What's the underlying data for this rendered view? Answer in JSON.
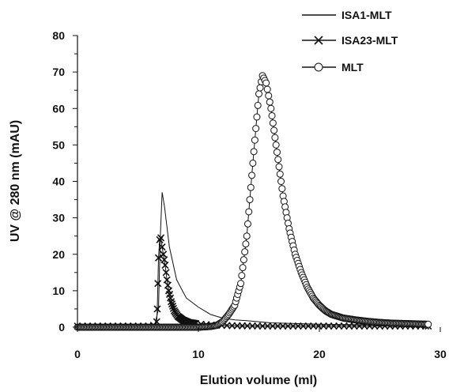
{
  "chart_data": {
    "type": "line",
    "xlabel": "Elution volume (ml)",
    "ylabel": "UV @ 280 nm (mAU)",
    "xlim": [
      0,
      30
    ],
    "ylim": [
      0,
      80
    ],
    "x_ticks": [
      0,
      10,
      20,
      30
    ],
    "y_ticks": [
      0,
      10,
      20,
      30,
      40,
      50,
      60,
      70,
      80
    ],
    "grid": false,
    "legend_position": "top-right",
    "series": [
      {
        "name": "ISA1-MLT",
        "marker": "none",
        "color": "#111111",
        "points": [
          [
            0,
            0.5
          ],
          [
            5,
            0.5
          ],
          [
            6.4,
            0.8
          ],
          [
            6.7,
            5
          ],
          [
            6.85,
            25
          ],
          [
            7.0,
            37
          ],
          [
            7.2,
            33
          ],
          [
            7.6,
            22
          ],
          [
            8.2,
            13
          ],
          [
            9,
            8
          ],
          [
            10,
            5.5
          ],
          [
            11,
            3.5
          ],
          [
            12,
            2.5
          ],
          [
            13,
            2
          ],
          [
            14,
            1.8
          ],
          [
            16,
            1.2
          ],
          [
            20,
            0.8
          ],
          [
            25,
            0.6
          ],
          [
            29,
            0.5
          ]
        ]
      },
      {
        "name": "ISA23-MLT",
        "marker": "x",
        "color": "#111111",
        "points": [
          [
            0,
            0.3
          ],
          [
            3,
            0.3
          ],
          [
            6,
            0.3
          ],
          [
            6.45,
            0.6
          ],
          [
            6.55,
            1.5
          ],
          [
            6.6,
            5
          ],
          [
            6.65,
            12
          ],
          [
            6.7,
            19
          ],
          [
            6.8,
            24
          ],
          [
            6.9,
            24.5
          ],
          [
            7.0,
            22
          ],
          [
            7.1,
            20
          ],
          [
            7.25,
            17
          ],
          [
            7.4,
            13
          ],
          [
            7.55,
            10
          ],
          [
            7.75,
            7
          ],
          [
            8.0,
            4.5
          ],
          [
            8.3,
            3
          ],
          [
            8.7,
            2
          ],
          [
            9.2,
            1.3
          ],
          [
            10,
            0.9
          ],
          [
            11,
            0.6
          ],
          [
            12,
            0.5
          ],
          [
            13,
            0.4
          ],
          [
            16,
            0.3
          ],
          [
            20,
            0.3
          ],
          [
            25,
            0.3
          ],
          [
            29,
            0.3
          ]
        ]
      },
      {
        "name": "MLT",
        "marker": "circle",
        "color": "#111111",
        "points": [
          [
            0,
            0
          ],
          [
            2,
            0
          ],
          [
            4,
            0
          ],
          [
            6,
            0
          ],
          [
            8,
            0
          ],
          [
            10,
            0
          ],
          [
            11,
            0.2
          ],
          [
            11.5,
            0.5
          ],
          [
            12,
            1.5
          ],
          [
            12.5,
            3.5
          ],
          [
            13,
            6
          ],
          [
            13.5,
            12
          ],
          [
            14,
            25
          ],
          [
            14.5,
            45
          ],
          [
            15,
            64
          ],
          [
            15.3,
            69
          ],
          [
            15.6,
            67
          ],
          [
            16,
            60
          ],
          [
            16.5,
            48
          ],
          [
            17,
            36
          ],
          [
            17.5,
            27
          ],
          [
            18,
            20
          ],
          [
            18.5,
            15
          ],
          [
            19,
            11
          ],
          [
            19.5,
            8
          ],
          [
            20,
            6
          ],
          [
            20.5,
            4.5
          ],
          [
            21,
            3.5
          ],
          [
            21.5,
            3
          ],
          [
            22,
            2.5
          ],
          [
            23,
            2
          ],
          [
            24,
            1.6
          ],
          [
            25,
            1.3
          ],
          [
            26,
            1.1
          ],
          [
            27,
            1
          ],
          [
            28,
            0.9
          ],
          [
            29,
            0.8
          ]
        ]
      }
    ]
  }
}
